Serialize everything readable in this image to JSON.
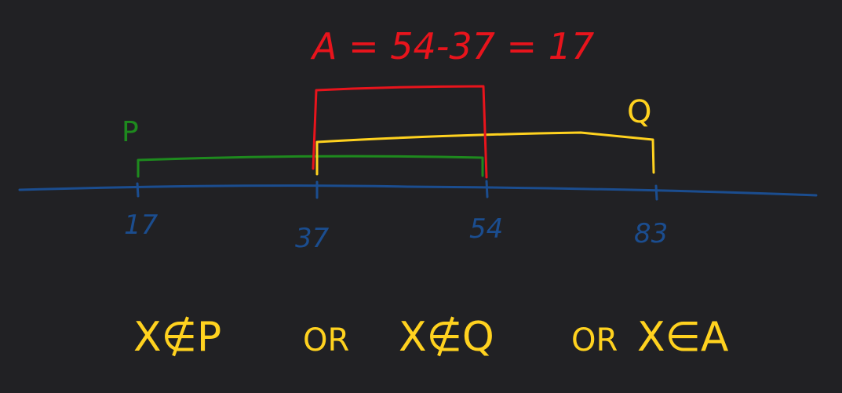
{
  "colors": {
    "background": "#212124",
    "number_line": "#1b4d8f",
    "set_p": "#1e8a1e",
    "set_q": "#ffd21f",
    "set_a": "#e8141c",
    "expression": "#ffd21f"
  },
  "title": "A = 54-37 = 17",
  "number_line": {
    "ticks": [
      "17",
      "37",
      "54",
      "83"
    ]
  },
  "sets": {
    "p": {
      "label": "P",
      "from": "17",
      "to": "54"
    },
    "q": {
      "label": "Q",
      "from": "37",
      "to": "83"
    },
    "a": {
      "label": "A",
      "from": "37",
      "to": "54"
    }
  },
  "expression": {
    "part1": "X∉P",
    "or1": "OR",
    "part2": "X∉Q",
    "or2": "OR",
    "part3": "X∈A"
  }
}
